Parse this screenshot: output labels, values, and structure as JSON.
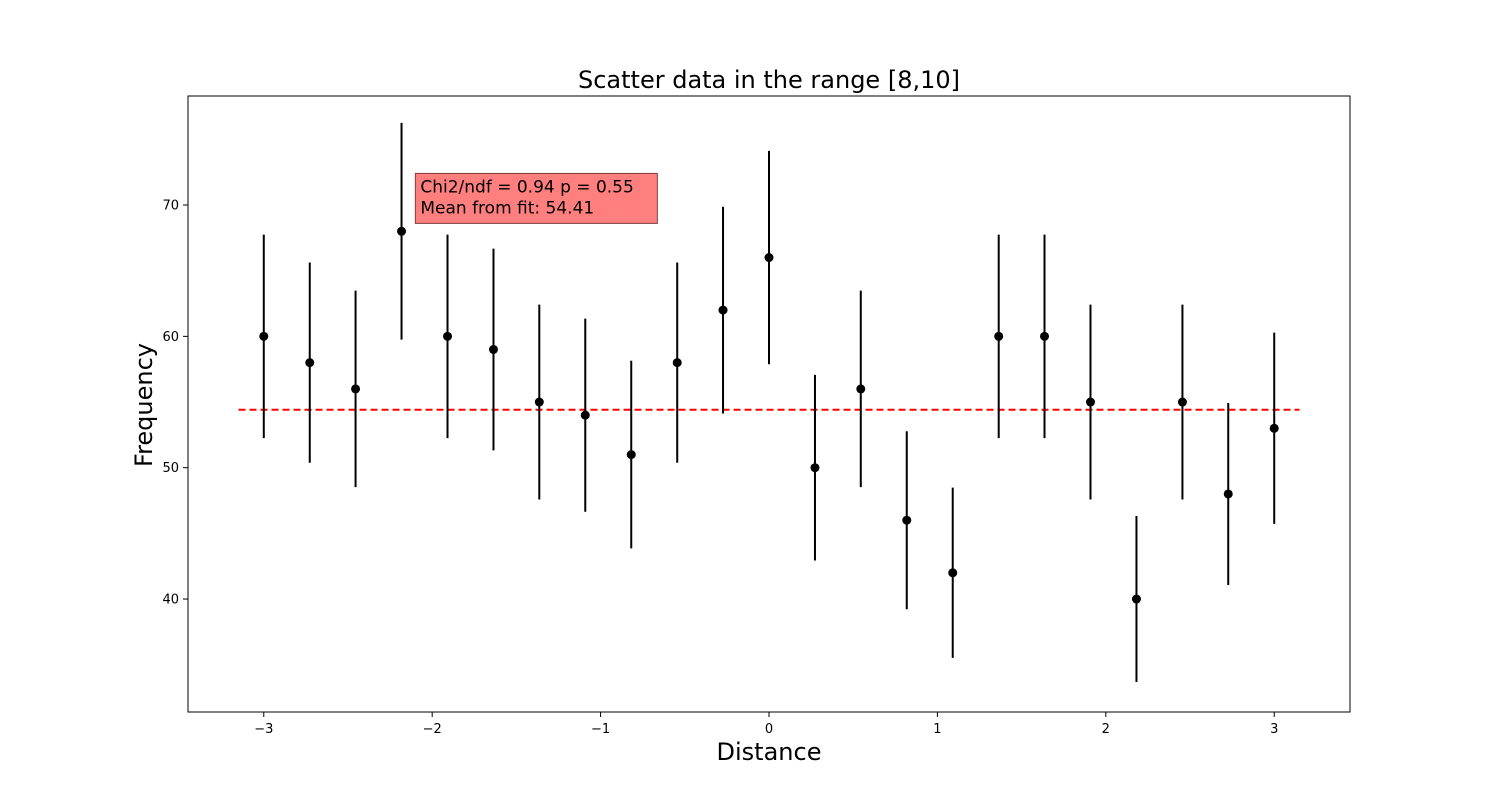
{
  "chart_data": {
    "type": "scatter",
    "title": "Scatter data in the range [8,10]",
    "xlabel": "Distance",
    "ylabel": "Frequency",
    "xlim": [
      -3.45,
      3.45
    ],
    "ylim": [
      31.4,
      78.3
    ],
    "xticks": [
      -3,
      -2,
      -1,
      0,
      1,
      2,
      3
    ],
    "xtick_labels": [
      "−3",
      "−2",
      "−1",
      "0",
      "1",
      "2",
      "3"
    ],
    "yticks": [
      40,
      50,
      60,
      70
    ],
    "ytick_labels": [
      "40",
      "50",
      "60",
      "70"
    ],
    "grid": false,
    "points": {
      "x": [
        -3.0,
        -2.727,
        -2.455,
        -2.182,
        -1.909,
        -1.636,
        -1.364,
        -1.091,
        -0.818,
        -0.545,
        -0.273,
        0.0,
        0.273,
        0.545,
        0.818,
        1.091,
        1.364,
        1.636,
        1.909,
        2.182,
        2.455,
        2.727,
        3.0
      ],
      "y": [
        60,
        58,
        56,
        68,
        60,
        59,
        55,
        54,
        51,
        58,
        62,
        66,
        50,
        56,
        46,
        42,
        60,
        60,
        55,
        40,
        55,
        48,
        53
      ],
      "yerr": [
        7.75,
        7.62,
        7.48,
        8.25,
        7.75,
        7.68,
        7.42,
        7.35,
        7.14,
        7.62,
        7.87,
        8.12,
        7.07,
        7.48,
        6.78,
        6.48,
        7.75,
        7.75,
        7.42,
        6.32,
        7.42,
        6.93,
        7.28
      ],
      "color": "#000000"
    },
    "fit_line": {
      "y": 54.41,
      "x_range": [
        -3.15,
        3.15
      ],
      "color": "#ff0000",
      "style": "dashed"
    },
    "annotation": {
      "lines": [
        "Chi2/ndf = 0.94 p = 0.55",
        "Mean from fit: 54.41"
      ],
      "background": "#ff7f7f",
      "border": "#7f3f3f",
      "x_anchor": -2.1,
      "y_anchor": 68.6
    }
  }
}
